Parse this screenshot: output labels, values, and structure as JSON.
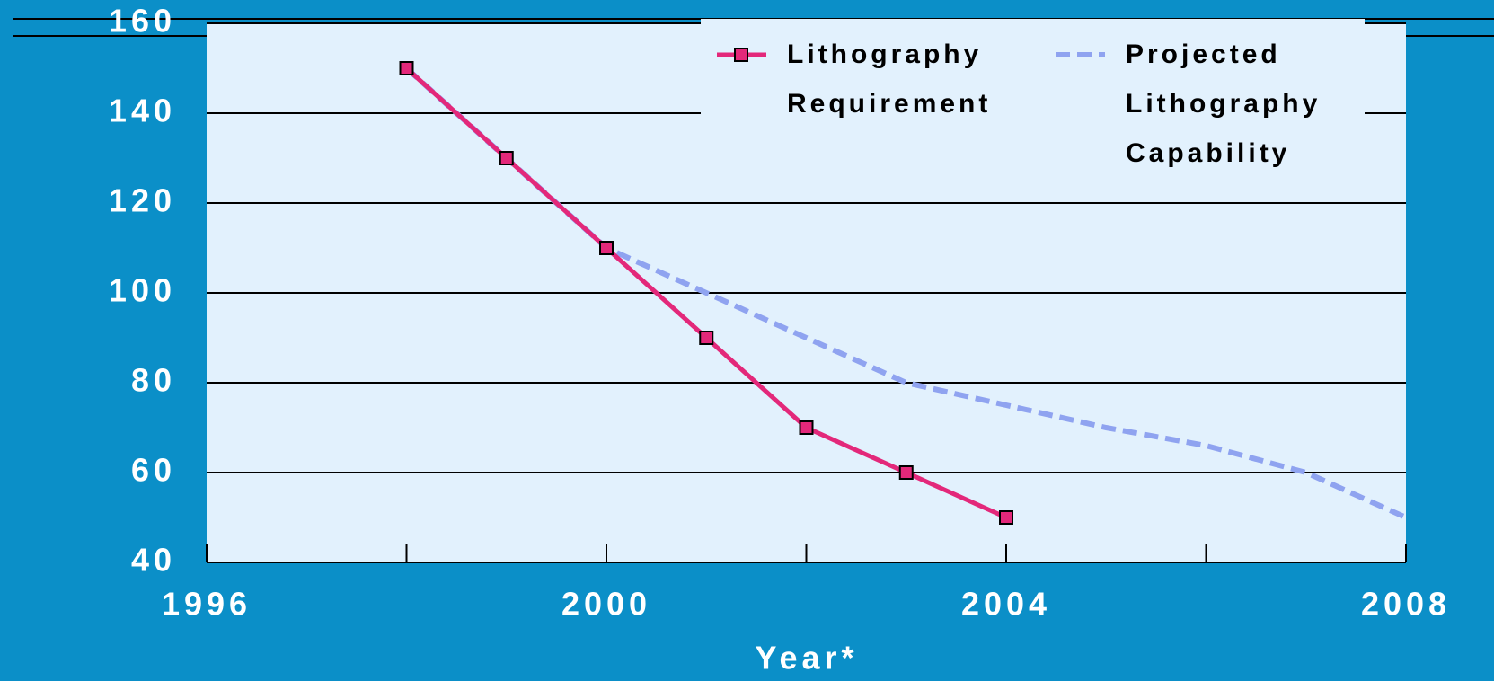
{
  "chart_data": {
    "type": "line",
    "x_label": "Year*",
    "series": [
      {
        "name": "Lithography Requirement",
        "color": "#e3287a",
        "style": "solid",
        "marker": "square",
        "x": [
          1998,
          1999,
          2000,
          2001,
          2002,
          2003,
          2004
        ],
        "values": [
          150,
          130,
          110,
          90,
          70,
          60,
          50
        ]
      },
      {
        "name": "Projected Lithography Capability",
        "color": "#8fa3f0",
        "style": "dashed",
        "x": [
          1998,
          1999,
          2000,
          2001,
          2002,
          2003,
          2004,
          2005,
          2006,
          2007,
          2008
        ],
        "values": [
          150,
          130,
          110,
          100,
          90,
          80,
          75,
          70,
          66,
          60,
          50
        ]
      }
    ],
    "xlim": [
      1996,
      2008
    ],
    "xticks": [
      1996,
      2000,
      2004,
      2008
    ],
    "x_minor_ticks": [
      1998,
      2002,
      2006
    ],
    "ylim": [
      40,
      160
    ],
    "yticks": [
      40,
      60,
      80,
      100,
      120,
      140,
      160
    ],
    "grid": true,
    "legend": "top right"
  }
}
